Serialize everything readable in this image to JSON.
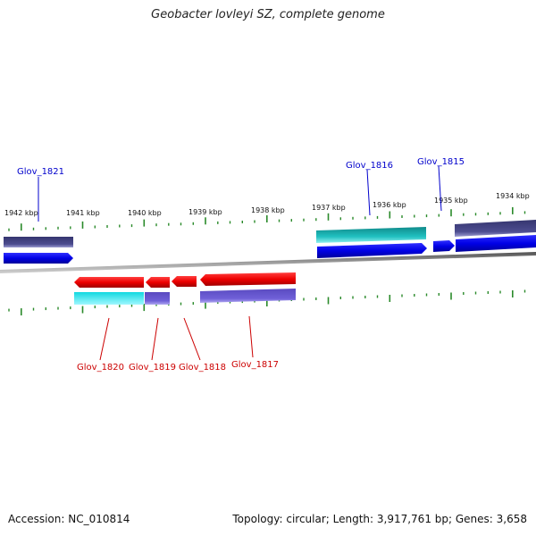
{
  "title": "Geobacter lovleyi SZ, complete genome",
  "footer": {
    "accession": "Accession: NC_010814",
    "summary": "Topology: circular; Length: 3,917,761 bp; Genes: 3,658"
  },
  "ticks": [
    "1942 kbp",
    "1941 kbp",
    "1940 kbp",
    "1939 kbp",
    "1938 kbp",
    "1937 kbp",
    "1936 kbp",
    "1935 kbp",
    "1934 kbp"
  ],
  "genes": [
    {
      "name": "Glov_1821",
      "strand": "forward",
      "color": "#0000cc"
    },
    {
      "name": "Glov_1816",
      "strand": "forward",
      "color": "#0000cc"
    },
    {
      "name": "Glov_1815",
      "strand": "forward",
      "color": "#0000cc"
    },
    {
      "name": "Glov_1820",
      "strand": "reverse",
      "color": "#cc0000"
    },
    {
      "name": "Glov_1819",
      "strand": "reverse",
      "color": "#cc0000"
    },
    {
      "name": "Glov_1818",
      "strand": "reverse",
      "color": "#cc0000"
    },
    {
      "name": "Glov_1817",
      "strand": "reverse",
      "color": "#cc0000"
    }
  ],
  "colors": {
    "forward_gene": "#0000e6",
    "reverse_gene": "#ee0000",
    "forward_label": "#0000cc",
    "reverse_label": "#cc0000",
    "cds_slate": "#4a4a8c",
    "cds_teal": "#20b0b0",
    "cds_cyan": "#20e0e8",
    "cds_purple": "#6a5acd",
    "backbone": "#808080",
    "tick": "#2a8a2a"
  }
}
